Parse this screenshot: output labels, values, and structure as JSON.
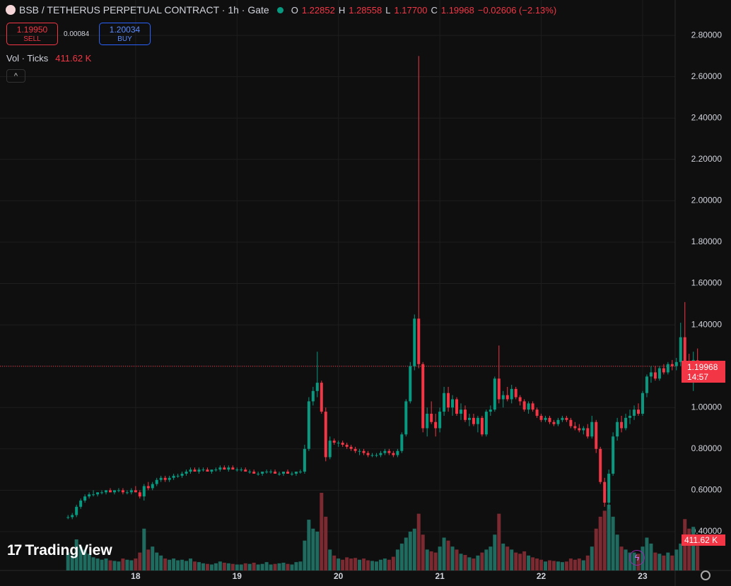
{
  "header": {
    "symbol": "BSB / TETHERUS PERPETUAL CONTRACT · 1h · Gate",
    "o": "O",
    "open": "1.22852",
    "h": "H",
    "high": "1.28558",
    "l": "L",
    "low": "1.17700",
    "c": "C",
    "close": "1.19968",
    "change": "−0.02606 (−2.13%)"
  },
  "trade": {
    "sell_price": "1.19950",
    "sell": "SELL",
    "spread": "0.00084",
    "buy_price": "1.20034",
    "buy": "BUY"
  },
  "volume_legend": {
    "name": "Vol · Ticks",
    "value": "411.62 K"
  },
  "price_label": {
    "price": "1.19968",
    "countdown": "14:57"
  },
  "volume_axis_label": "411.62 K",
  "watermark": "TradingView",
  "chart_data": {
    "type": "candlestick",
    "x": [
      0,
      1,
      2,
      3,
      4,
      5,
      6,
      7,
      8,
      9,
      10,
      11,
      12,
      13,
      14,
      15,
      16,
      17,
      18,
      19,
      20,
      21,
      22,
      23,
      24,
      25,
      26,
      27,
      28,
      29,
      30,
      31,
      32,
      33,
      34,
      35,
      36,
      37,
      38,
      39,
      40,
      41,
      42,
      43,
      44,
      45,
      46,
      47,
      48,
      49,
      50,
      51,
      52,
      53,
      54,
      55,
      56,
      57,
      58,
      59,
      60,
      61,
      62,
      63,
      64,
      65,
      66,
      67,
      68,
      69,
      70,
      71,
      72,
      73,
      74,
      75,
      76,
      77,
      78,
      79,
      80,
      81,
      82,
      83,
      84,
      85,
      86,
      87,
      88,
      89,
      90,
      91,
      92,
      93,
      94,
      95,
      96,
      97,
      98,
      99,
      100,
      101,
      102,
      103,
      104,
      105,
      106,
      107,
      108,
      109,
      110,
      111,
      112,
      113,
      114,
      115,
      116,
      117,
      118,
      119,
      120,
      121,
      122,
      123,
      124,
      125,
      126,
      127,
      128,
      129,
      130,
      131,
      132,
      133,
      134,
      135,
      136,
      137,
      138,
      139,
      140,
      141,
      142,
      143,
      144,
      145,
      146,
      147,
      148,
      149
    ],
    "ohlc": [
      [
        0.47,
        0.48,
        0.46,
        0.47
      ],
      [
        0.47,
        0.49,
        0.46,
        0.48
      ],
      [
        0.48,
        0.53,
        0.47,
        0.52
      ],
      [
        0.52,
        0.56,
        0.51,
        0.55
      ],
      [
        0.55,
        0.58,
        0.54,
        0.57
      ],
      [
        0.57,
        0.59,
        0.56,
        0.58
      ],
      [
        0.58,
        0.6,
        0.57,
        0.58
      ],
      [
        0.58,
        0.59,
        0.57,
        0.59
      ],
      [
        0.59,
        0.6,
        0.58,
        0.59
      ],
      [
        0.59,
        0.6,
        0.58,
        0.6
      ],
      [
        0.6,
        0.61,
        0.59,
        0.59
      ],
      [
        0.59,
        0.6,
        0.58,
        0.6
      ],
      [
        0.6,
        0.61,
        0.59,
        0.6
      ],
      [
        0.6,
        0.61,
        0.58,
        0.59
      ],
      [
        0.59,
        0.6,
        0.58,
        0.59
      ],
      [
        0.59,
        0.61,
        0.58,
        0.6
      ],
      [
        0.6,
        0.62,
        0.59,
        0.59
      ],
      [
        0.59,
        0.6,
        0.56,
        0.57
      ],
      [
        0.57,
        0.63,
        0.55,
        0.62
      ],
      [
        0.62,
        0.64,
        0.6,
        0.61
      ],
      [
        0.61,
        0.64,
        0.6,
        0.63
      ],
      [
        0.63,
        0.66,
        0.62,
        0.65
      ],
      [
        0.65,
        0.67,
        0.64,
        0.66
      ],
      [
        0.66,
        0.67,
        0.64,
        0.65
      ],
      [
        0.65,
        0.67,
        0.64,
        0.66
      ],
      [
        0.66,
        0.68,
        0.65,
        0.67
      ],
      [
        0.67,
        0.68,
        0.66,
        0.67
      ],
      [
        0.67,
        0.69,
        0.66,
        0.68
      ],
      [
        0.68,
        0.7,
        0.67,
        0.69
      ],
      [
        0.69,
        0.71,
        0.68,
        0.7
      ],
      [
        0.7,
        0.71,
        0.69,
        0.69
      ],
      [
        0.69,
        0.71,
        0.68,
        0.7
      ],
      [
        0.7,
        0.71,
        0.69,
        0.7
      ],
      [
        0.7,
        0.71,
        0.69,
        0.69
      ],
      [
        0.69,
        0.7,
        0.68,
        0.7
      ],
      [
        0.7,
        0.71,
        0.69,
        0.7
      ],
      [
        0.7,
        0.72,
        0.69,
        0.71
      ],
      [
        0.71,
        0.72,
        0.7,
        0.7
      ],
      [
        0.7,
        0.72,
        0.69,
        0.71
      ],
      [
        0.71,
        0.72,
        0.7,
        0.7
      ],
      [
        0.7,
        0.71,
        0.69,
        0.7
      ],
      [
        0.7,
        0.71,
        0.69,
        0.7
      ],
      [
        0.7,
        0.71,
        0.69,
        0.69
      ],
      [
        0.69,
        0.7,
        0.68,
        0.69
      ],
      [
        0.69,
        0.7,
        0.68,
        0.68
      ],
      [
        0.68,
        0.69,
        0.67,
        0.68
      ],
      [
        0.68,
        0.69,
        0.67,
        0.69
      ],
      [
        0.69,
        0.7,
        0.68,
        0.69
      ],
      [
        0.69,
        0.7,
        0.68,
        0.69
      ],
      [
        0.69,
        0.7,
        0.68,
        0.68
      ],
      [
        0.68,
        0.69,
        0.67,
        0.68
      ],
      [
        0.68,
        0.69,
        0.67,
        0.69
      ],
      [
        0.69,
        0.7,
        0.68,
        0.68
      ],
      [
        0.68,
        0.69,
        0.67,
        0.68
      ],
      [
        0.68,
        0.69,
        0.67,
        0.69
      ],
      [
        0.69,
        0.7,
        0.68,
        0.69
      ],
      [
        0.69,
        0.82,
        0.68,
        0.8
      ],
      [
        0.8,
        1.05,
        0.79,
        1.03
      ],
      [
        1.03,
        1.1,
        1.01,
        1.08
      ],
      [
        1.08,
        1.27,
        1.05,
        1.12
      ],
      [
        1.12,
        1.13,
        0.97,
        0.98
      ],
      [
        0.98,
        1.0,
        0.74,
        0.76
      ],
      [
        0.76,
        0.86,
        0.75,
        0.84
      ],
      [
        0.84,
        0.85,
        0.82,
        0.83
      ],
      [
        0.83,
        0.84,
        0.81,
        0.83
      ],
      [
        0.83,
        0.84,
        0.81,
        0.82
      ],
      [
        0.82,
        0.83,
        0.8,
        0.81
      ],
      [
        0.81,
        0.82,
        0.79,
        0.8
      ],
      [
        0.8,
        0.81,
        0.78,
        0.79
      ],
      [
        0.79,
        0.8,
        0.77,
        0.79
      ],
      [
        0.79,
        0.8,
        0.77,
        0.78
      ],
      [
        0.78,
        0.79,
        0.76,
        0.77
      ],
      [
        0.77,
        0.78,
        0.76,
        0.77
      ],
      [
        0.77,
        0.78,
        0.76,
        0.77
      ],
      [
        0.77,
        0.79,
        0.76,
        0.78
      ],
      [
        0.78,
        0.8,
        0.77,
        0.79
      ],
      [
        0.79,
        0.8,
        0.77,
        0.78
      ],
      [
        0.78,
        0.79,
        0.76,
        0.77
      ],
      [
        0.77,
        0.8,
        0.76,
        0.79
      ],
      [
        0.79,
        0.88,
        0.78,
        0.87
      ],
      [
        0.87,
        1.04,
        0.86,
        1.03
      ],
      [
        1.03,
        1.22,
        1.02,
        1.2
      ],
      [
        1.2,
        1.45,
        1.18,
        1.43
      ],
      [
        1.43,
        2.7,
        1.19,
        1.21
      ],
      [
        1.21,
        1.22,
        0.88,
        0.9
      ],
      [
        0.9,
        1.0,
        0.86,
        0.97
      ],
      [
        0.97,
        1.03,
        0.92,
        0.93
      ],
      [
        0.93,
        0.97,
        0.86,
        0.9
      ],
      [
        0.9,
        1.0,
        0.88,
        0.98
      ],
      [
        0.98,
        1.1,
        0.96,
        1.07
      ],
      [
        1.07,
        1.1,
        0.98,
        1.0
      ],
      [
        1.0,
        1.06,
        0.96,
        1.04
      ],
      [
        1.04,
        1.05,
        0.96,
        0.97
      ],
      [
        0.97,
        1.02,
        0.94,
        0.99
      ],
      [
        0.99,
        1.01,
        0.93,
        0.94
      ],
      [
        0.94,
        0.97,
        0.91,
        0.95
      ],
      [
        0.95,
        0.97,
        0.91,
        0.92
      ],
      [
        0.92,
        0.96,
        0.88,
        0.95
      ],
      [
        0.95,
        0.96,
        0.86,
        0.87
      ],
      [
        0.87,
        0.99,
        0.86,
        0.98
      ],
      [
        0.98,
        1.01,
        0.96,
        0.99
      ],
      [
        0.99,
        1.15,
        0.98,
        1.14
      ],
      [
        1.14,
        1.3,
        1.02,
        1.04
      ],
      [
        1.04,
        1.08,
        1.0,
        1.06
      ],
      [
        1.06,
        1.1,
        1.03,
        1.04
      ],
      [
        1.04,
        1.11,
        1.02,
        1.09
      ],
      [
        1.09,
        1.1,
        1.04,
        1.05
      ],
      [
        1.05,
        1.06,
        1.01,
        1.03
      ],
      [
        1.03,
        1.04,
        0.98,
        0.99
      ],
      [
        0.99,
        1.03,
        0.97,
        1.02
      ],
      [
        1.02,
        1.03,
        0.98,
        0.99
      ],
      [
        0.99,
        1.0,
        0.95,
        0.96
      ],
      [
        0.96,
        0.97,
        0.93,
        0.94
      ],
      [
        0.94,
        0.96,
        0.93,
        0.95
      ],
      [
        0.95,
        0.96,
        0.92,
        0.93
      ],
      [
        0.93,
        0.94,
        0.91,
        0.92
      ],
      [
        0.92,
        0.95,
        0.91,
        0.94
      ],
      [
        0.94,
        0.96,
        0.93,
        0.95
      ],
      [
        0.95,
        0.96,
        0.93,
        0.94
      ],
      [
        0.94,
        0.95,
        0.9,
        0.91
      ],
      [
        0.91,
        0.93,
        0.89,
        0.9
      ],
      [
        0.9,
        0.92,
        0.88,
        0.89
      ],
      [
        0.89,
        0.91,
        0.87,
        0.9
      ],
      [
        0.9,
        0.92,
        0.85,
        0.86
      ],
      [
        0.86,
        0.96,
        0.85,
        0.93
      ],
      [
        0.93,
        0.94,
        0.78,
        0.8
      ],
      [
        0.8,
        0.81,
        0.63,
        0.64
      ],
      [
        0.64,
        0.66,
        0.52,
        0.54
      ],
      [
        0.54,
        0.7,
        0.51,
        0.68
      ],
      [
        0.68,
        0.88,
        0.67,
        0.86
      ],
      [
        0.86,
        0.95,
        0.84,
        0.93
      ],
      [
        0.93,
        0.96,
        0.88,
        0.9
      ],
      [
        0.9,
        0.97,
        0.89,
        0.95
      ],
      [
        0.95,
        0.99,
        0.92,
        0.96
      ],
      [
        0.96,
        1.01,
        0.94,
        0.99
      ],
      [
        0.99,
        1.02,
        0.96,
        0.97
      ],
      [
        0.97,
        1.08,
        0.96,
        1.07
      ],
      [
        1.07,
        1.16,
        1.05,
        1.15
      ],
      [
        1.15,
        1.2,
        1.12,
        1.17
      ],
      [
        1.17,
        1.2,
        1.13,
        1.14
      ],
      [
        1.14,
        1.2,
        1.13,
        1.19
      ],
      [
        1.19,
        1.21,
        1.16,
        1.17
      ],
      [
        1.17,
        1.22,
        1.16,
        1.21
      ],
      [
        1.21,
        1.23,
        1.18,
        1.2
      ],
      [
        1.2,
        1.24,
        1.18,
        1.22
      ],
      [
        1.22,
        1.41,
        1.2,
        1.34
      ],
      [
        1.34,
        1.51,
        1.2,
        1.22
      ],
      [
        1.22,
        1.26,
        1.12,
        1.16
      ],
      [
        1.16,
        1.27,
        1.08,
        1.23
      ],
      [
        1.22852,
        1.28558,
        1.177,
        1.19968
      ]
    ],
    "volume": [
      300,
      250,
      520,
      400,
      350,
      280,
      220,
      200,
      180,
      200,
      170,
      160,
      150,
      200,
      180,
      170,
      200,
      300,
      700,
      350,
      400,
      300,
      250,
      200,
      180,
      200,
      170,
      180,
      160,
      200,
      150,
      140,
      120,
      110,
      100,
      120,
      150,
      130,
      120,
      110,
      100,
      100,
      120,
      110,
      130,
      100,
      110,
      140,
      100,
      110,
      120,
      130,
      110,
      100,
      140,
      150,
      500,
      850,
      700,
      650,
      1300,
      900,
      350,
      250,
      200,
      180,
      220,
      200,
      210,
      180,
      200,
      170,
      160,
      150,
      180,
      200,
      180,
      230,
      350,
      450,
      550,
      650,
      700,
      950,
      600,
      350,
      320,
      300,
      400,
      550,
      500,
      400,
      350,
      280,
      260,
      220,
      200,
      250,
      300,
      350,
      400,
      600,
      950,
      450,
      400,
      350,
      300,
      280,
      320,
      250,
      220,
      200,
      180,
      150,
      170,
      160,
      150,
      140,
      150,
      200,
      180,
      200,
      170,
      250,
      400,
      700,
      900,
      1000,
      1100,
      900,
      600,
      400,
      350,
      300,
      300,
      280,
      400,
      550,
      450,
      300,
      280,
      250,
      300,
      250,
      350,
      450,
      860,
      700,
      730,
      411.62
    ],
    "up_color": "#089981",
    "down_color": "#f23645",
    "volume_up_color": "#1f6b5f",
    "volume_down_color": "#7a2a30",
    "ylim": [
      0.212,
      2.971
    ],
    "yticks": [
      {
        "value": 0.4,
        "label": "0.40000"
      },
      {
        "value": 0.6,
        "label": "0.60000"
      },
      {
        "value": 0.8,
        "label": "0.80000"
      },
      {
        "value": 1.0,
        "label": "1.00000"
      },
      {
        "value": 1.2,
        "label": "1.20000"
      },
      {
        "value": 1.4,
        "label": "1.40000"
      },
      {
        "value": 1.6,
        "label": "1.60000"
      },
      {
        "value": 1.8,
        "label": "1.80000"
      },
      {
        "value": 2.0,
        "label": "2.00000"
      },
      {
        "value": 2.2,
        "label": "2.20000"
      },
      {
        "value": 2.4,
        "label": "2.40000"
      },
      {
        "value": 2.6,
        "label": "2.60000"
      },
      {
        "value": 2.8,
        "label": "2.80000"
      }
    ],
    "xlim": [
      -16.1,
      143.7
    ],
    "xticks": [
      {
        "value": 16,
        "label": "18"
      },
      {
        "value": 40,
        "label": "19"
      },
      {
        "value": 64,
        "label": "20"
      },
      {
        "value": 88,
        "label": "21"
      },
      {
        "value": 112,
        "label": "22"
      },
      {
        "value": 136,
        "label": "23"
      }
    ],
    "grid": true
  }
}
